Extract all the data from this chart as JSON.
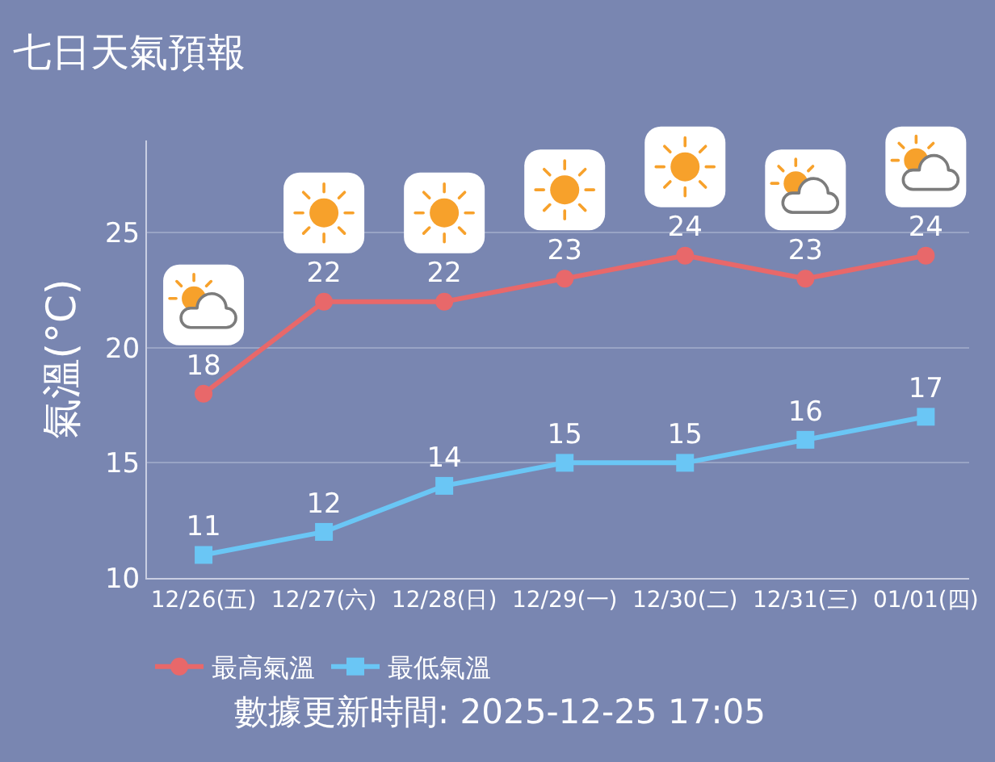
{
  "chart_data": {
    "type": "line",
    "title": "七日天氣預報",
    "ylabel": "氣溫(°C)",
    "categories": [
      "12/26(五)",
      "12/27(六)",
      "12/28(日)",
      "12/29(一)",
      "12/30(二)",
      "12/31(三)",
      "01/01(四)"
    ],
    "series": [
      {
        "name": "最高氣溫",
        "color": "#e8686a",
        "marker": "circle",
        "values": [
          18,
          22,
          22,
          23,
          24,
          23,
          24
        ]
      },
      {
        "name": "最低氣溫",
        "color": "#6ac6f5",
        "marker": "square",
        "values": [
          11,
          12,
          14,
          15,
          15,
          16,
          17
        ]
      }
    ],
    "ylim": [
      10,
      29
    ],
    "yticks": [
      10,
      15,
      20,
      25
    ],
    "grid": "y",
    "legend": "bottom left",
    "data_labels": true,
    "annotations": [
      "數據更新時間: 2025-12-25 17:05"
    ]
  }
}
